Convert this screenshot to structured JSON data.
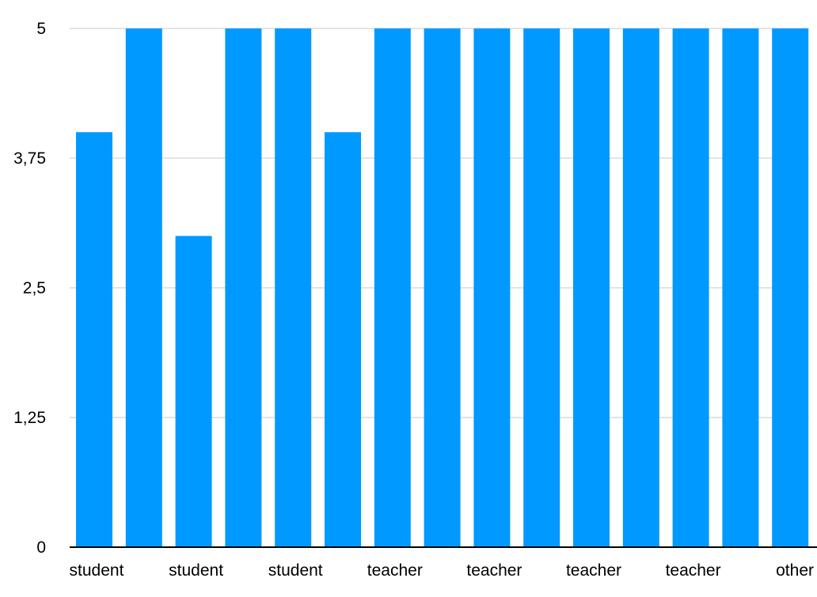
{
  "chart_data": {
    "type": "bar",
    "title": "",
    "xlabel": "",
    "ylabel": "",
    "ylim": [
      0,
      5
    ],
    "y_ticks": [
      0,
      1.25,
      2.5,
      3.75,
      5
    ],
    "y_tick_labels": [
      "0",
      "1,25",
      "2,5",
      "3,75",
      "5"
    ],
    "categories": [
      "student",
      "",
      "student",
      "",
      "student",
      "",
      "teacher",
      "",
      "teacher",
      "",
      "teacher",
      "",
      "teacher",
      "",
      "other"
    ],
    "values": [
      4,
      5,
      3,
      5,
      5,
      4,
      5,
      5,
      5,
      5,
      5,
      5,
      5,
      5,
      5
    ],
    "grid": true,
    "legend": "none",
    "bar_color": "#0099ff"
  }
}
